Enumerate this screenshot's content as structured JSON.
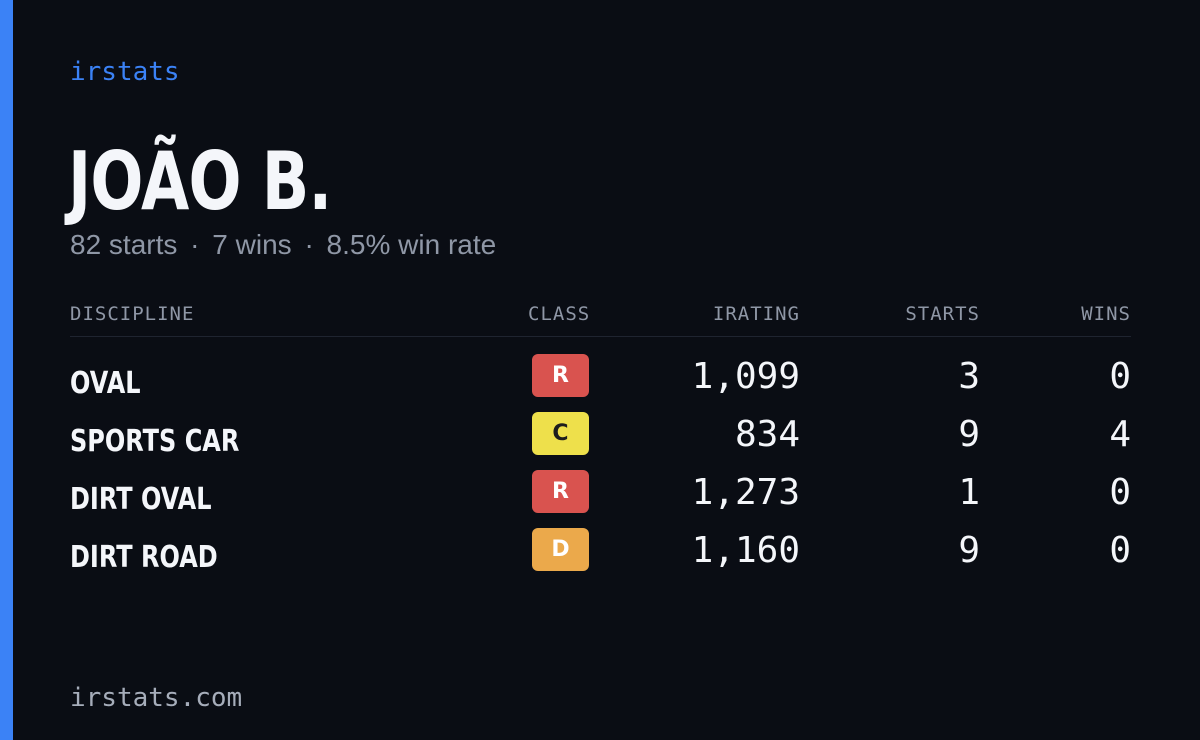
{
  "brand": "irstats",
  "driver": {
    "name": "JOÃO B.",
    "starts_text": "82 starts",
    "wins_text": "7 wins",
    "win_rate_text": "8.5% win rate",
    "separator": "·"
  },
  "table": {
    "headers": {
      "discipline": "DISCIPLINE",
      "class": "CLASS",
      "irating": "IRATING",
      "starts": "STARTS",
      "wins": "WINS"
    },
    "rows": [
      {
        "discipline": "OVAL",
        "class": "R",
        "irating": "1,099",
        "starts": "3",
        "wins": "0"
      },
      {
        "discipline": "SPORTS CAR",
        "class": "C",
        "irating": "834",
        "starts": "9",
        "wins": "4"
      },
      {
        "discipline": "DIRT OVAL",
        "class": "R",
        "irating": "1,273",
        "starts": "1",
        "wins": "0"
      },
      {
        "discipline": "DIRT ROAD",
        "class": "D",
        "irating": "1,160",
        "starts": "9",
        "wins": "0"
      }
    ]
  },
  "class_colors": {
    "R": {
      "bg": "#d9534f",
      "fg": "#ffffff"
    },
    "C": {
      "bg": "#eee04b",
      "fg": "#1d1d1d"
    },
    "D": {
      "bg": "#eba94b",
      "fg": "#ffffff"
    }
  },
  "colors": {
    "accent": "#3b82f6",
    "background": "#0a0d14",
    "muted_text": "#8f97a6"
  },
  "footer": "irstats.com"
}
